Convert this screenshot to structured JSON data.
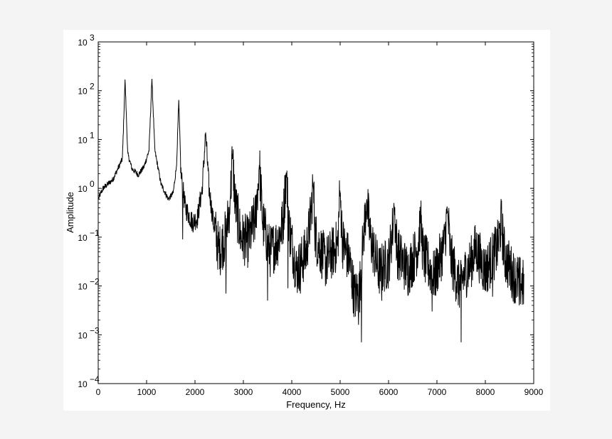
{
  "background_color": "#f4f4f4",
  "panel_color": "#ffffff",
  "line_color": "#000000",
  "chart_data": {
    "type": "line",
    "title": "",
    "xlabel": "Frequency, Hz",
    "ylabel": "Amplitude",
    "xlim": [
      0,
      9000
    ],
    "ylim": [
      0.0001,
      1000
    ],
    "yscale": "log",
    "grid": false,
    "legend": "none",
    "x_ticks": [
      0,
      1000,
      2000,
      3000,
      4000,
      5000,
      6000,
      7000,
      8000,
      9000
    ],
    "x_tick_labels": [
      "0",
      "1000",
      "2000",
      "3000",
      "4000",
      "5000",
      "6000",
      "7000",
      "8000",
      "9000"
    ],
    "y_ticks": [
      {
        "value": 0.0001,
        "base": "10",
        "exp": "−4"
      },
      {
        "value": 0.001,
        "base": "10",
        "exp": "−3"
      },
      {
        "value": 0.01,
        "base": "10",
        "exp": "−2"
      },
      {
        "value": 0.1,
        "base": "10",
        "exp": "−1"
      },
      {
        "value": 1,
        "base": "10",
        "exp": "0"
      },
      {
        "value": 10,
        "base": "10",
        "exp": "1"
      },
      {
        "value": 100,
        "base": "10",
        "exp": "2"
      },
      {
        "value": 1000,
        "base": "10",
        "exp": "3"
      }
    ],
    "series": [
      {
        "color": "#000000",
        "x_range": [
          0,
          8800
        ],
        "baseline": [
          [
            0,
            0.6
          ],
          [
            100,
            1.0
          ],
          [
            300,
            1.5
          ],
          [
            500,
            4
          ],
          [
            555,
            170
          ],
          [
            610,
            5
          ],
          [
            700,
            2.5
          ],
          [
            830,
            1.9
          ],
          [
            950,
            2.8
          ],
          [
            1050,
            6
          ],
          [
            1110,
            175
          ],
          [
            1170,
            6
          ],
          [
            1300,
            1.2
          ],
          [
            1450,
            0.6
          ],
          [
            1550,
            0.8
          ],
          [
            1620,
            3
          ],
          [
            1665,
            65
          ],
          [
            1710,
            2
          ],
          [
            1800,
            0.4
          ],
          [
            1950,
            0.2
          ],
          [
            2050,
            0.25
          ],
          [
            2150,
            1.0
          ],
          [
            2220,
            14
          ],
          [
            2290,
            1.0
          ],
          [
            2380,
            0.2
          ],
          [
            2500,
            0.05
          ],
          [
            2650,
            0.12
          ],
          [
            2730,
            0.6
          ],
          [
            2775,
            5
          ],
          [
            2830,
            0.5
          ],
          [
            2950,
            0.1
          ],
          [
            3100,
            0.08
          ],
          [
            3250,
            0.25
          ],
          [
            3330,
            3
          ],
          [
            3400,
            0.2
          ],
          [
            3550,
            0.05
          ],
          [
            3700,
            0.08
          ],
          [
            3820,
            0.2
          ],
          [
            3885,
            2.1
          ],
          [
            3950,
            0.15
          ],
          [
            4100,
            0.02
          ],
          [
            4300,
            0.05
          ],
          [
            4400,
            0.3
          ],
          [
            4440,
            1.3
          ],
          [
            4490,
            0.1
          ],
          [
            4700,
            0.03
          ],
          [
            4950,
            0.07
          ],
          [
            4995,
            0.9
          ],
          [
            5050,
            0.08
          ],
          [
            5200,
            0.03
          ],
          [
            5300,
            0.006
          ],
          [
            5400,
            0.008
          ],
          [
            5480,
            0.1
          ],
          [
            5550,
            0.6
          ],
          [
            5620,
            0.1
          ],
          [
            5800,
            0.02
          ],
          [
            6000,
            0.03
          ],
          [
            6100,
            0.2
          ],
          [
            6110,
            0.5
          ],
          [
            6180,
            0.05
          ],
          [
            6400,
            0.02
          ],
          [
            6600,
            0.06
          ],
          [
            6660,
            0.22
          ],
          [
            6720,
            0.04
          ],
          [
            6950,
            0.015
          ],
          [
            7150,
            0.07
          ],
          [
            7220,
            0.35
          ],
          [
            7280,
            0.04
          ],
          [
            7450,
            0.01
          ],
          [
            7700,
            0.03
          ],
          [
            7800,
            0.06
          ],
          [
            8000,
            0.02
          ],
          [
            8250,
            0.06
          ],
          [
            8330,
            0.2
          ],
          [
            8400,
            0.04
          ],
          [
            8600,
            0.015
          ],
          [
            8800,
            0.01
          ]
        ],
        "dips": [
          [
            1745,
            0.09
          ],
          [
            2510,
            0.022
          ],
          [
            2640,
            0.007
          ],
          [
            3500,
            0.005
          ],
          [
            3920,
            0.009
          ],
          [
            4180,
            0.007
          ],
          [
            5380,
            0.0016
          ],
          [
            5440,
            0.0007
          ],
          [
            5860,
            0.005
          ],
          [
            6900,
            0.003
          ],
          [
            7500,
            0.0007
          ],
          [
            8150,
            0.006
          ],
          [
            8700,
            0.004
          ]
        ]
      }
    ]
  }
}
